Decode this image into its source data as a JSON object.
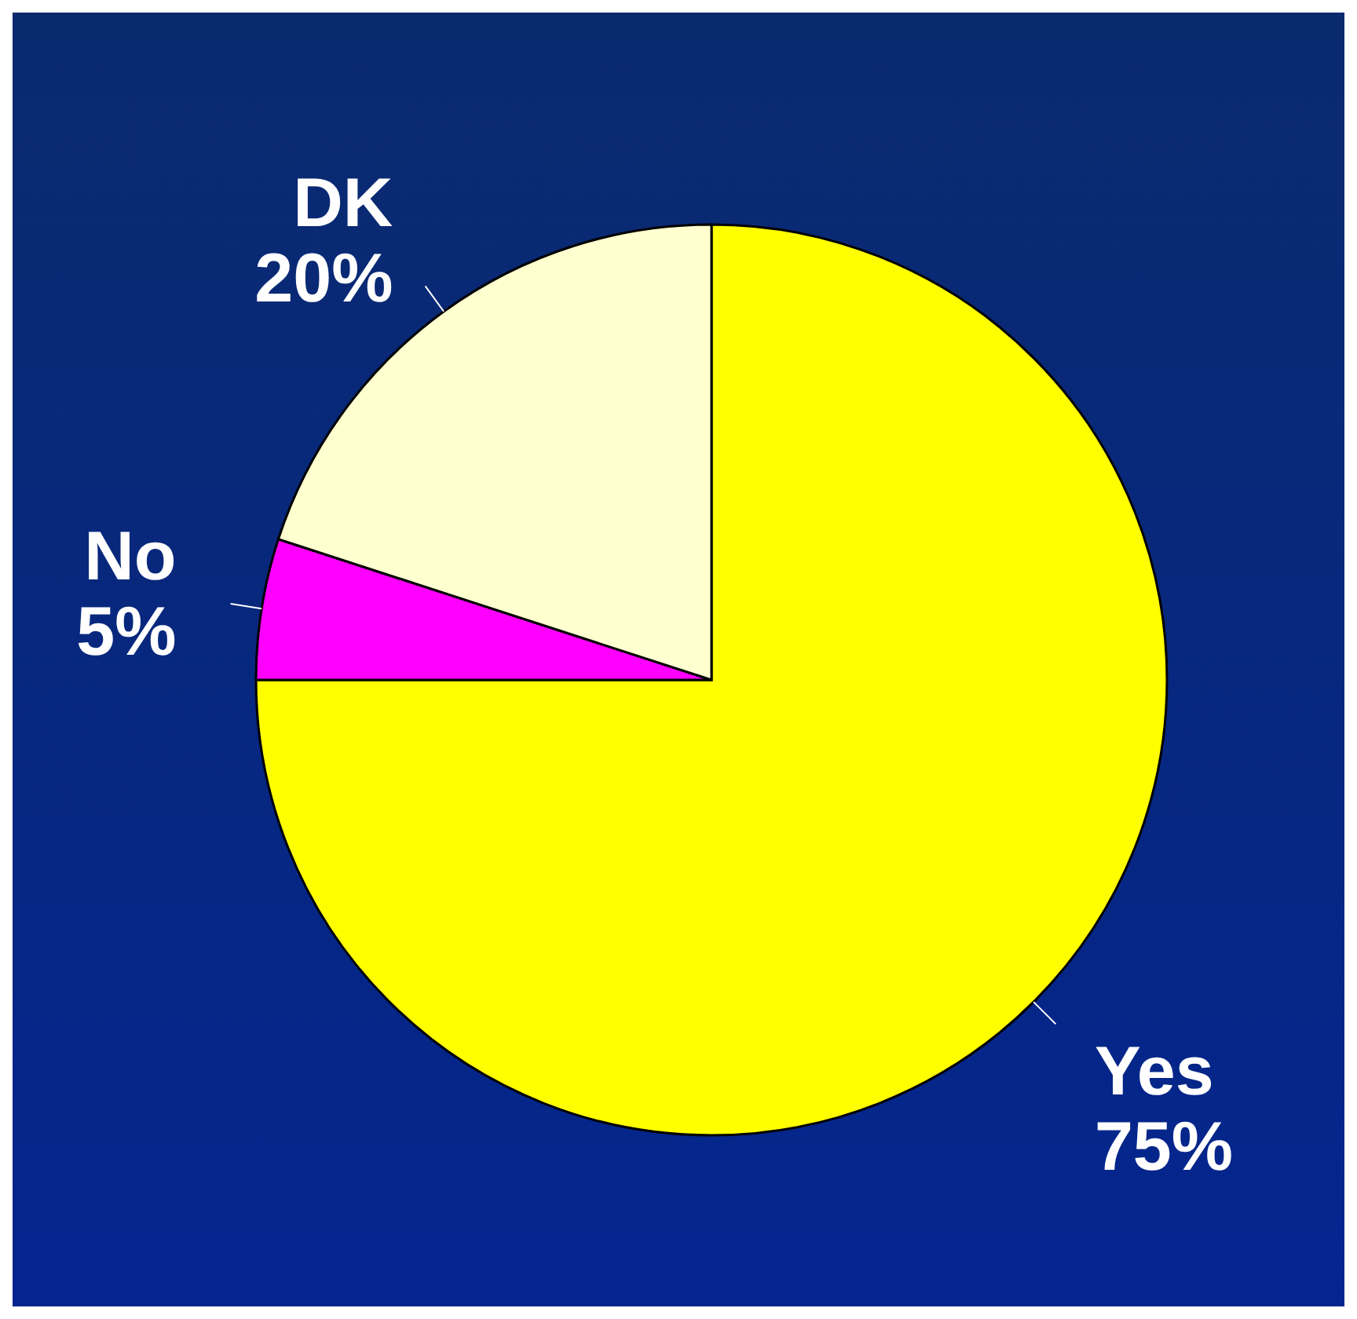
{
  "chart_data": {
    "type": "pie",
    "categories": [
      "Yes",
      "No",
      "DK"
    ],
    "values": [
      75,
      5,
      20
    ],
    "colors": [
      "#ffff00",
      "#ff00ff",
      "#ffffd0"
    ],
    "value_labels": [
      "75%",
      "5%",
      "20%"
    ]
  }
}
